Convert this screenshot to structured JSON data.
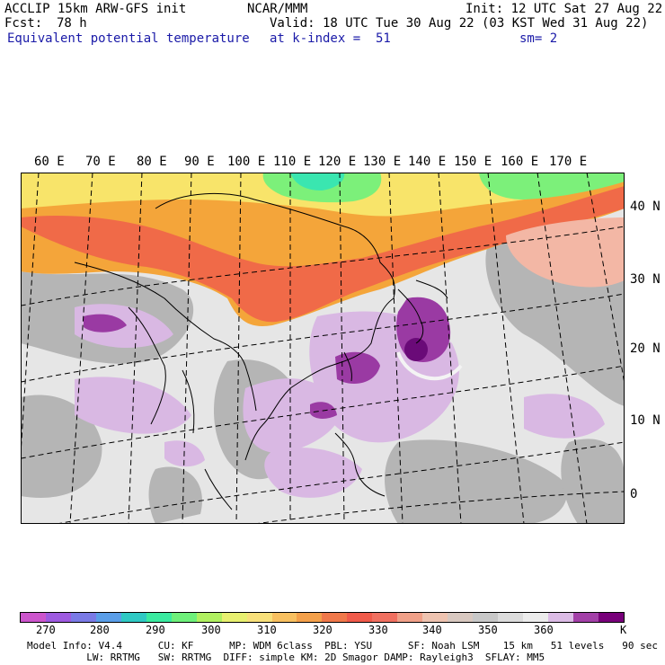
{
  "header": {
    "model": "ACCLIP 15km ARW-GFS init",
    "org": "NCAR/MMM",
    "init": "Init: 12 UTC Sat 27 Aug 22",
    "fcst_label": "Fcst:",
    "fcst_value": "78 h",
    "valid": "Valid: 18 UTC Tue 30 Aug 22 (03 KST Wed 31 Aug 22)",
    "field": "Equivalent potential temperature",
    "level": "at k-index =  51",
    "smooth": "sm= 2"
  },
  "map": {
    "lon_labels": [
      "60 E",
      "70 E",
      "80 E",
      "90 E",
      "100 E",
      "110 E",
      "120 E",
      "130 E",
      "140 E",
      "150 E",
      "160 E",
      "170 E"
    ],
    "lat_labels": [
      "40 N",
      "30 N",
      "20 N",
      "10 N",
      "0"
    ],
    "colors": {
      "land_bg": "#e6e6e6",
      "gray": "#b5b5b5",
      "light_purple": "#d9b8e3",
      "purple": "#9a3aa3",
      "dark_purple": "#6a0a78",
      "orange": "#f4a53a",
      "red_orange": "#f06a48",
      "yellow": "#f8e46a",
      "green": "#7cf07a",
      "teal": "#3ae6b0",
      "salmon": "#f3b7a5"
    }
  },
  "colorbar": {
    "colors": [
      "#cc55cc",
      "#9e5ae0",
      "#7a7ae6",
      "#5a9ee8",
      "#2fc9c4",
      "#3aeaa0",
      "#6ef07a",
      "#b0f060",
      "#e8f070",
      "#f8e07a",
      "#f8c060",
      "#f4a04a",
      "#f0784a",
      "#f05a4a",
      "#f07060",
      "#f0a088",
      "#eec3b0",
      "#d8c8c0",
      "#c8c8c8",
      "#dcdcdc",
      "#ececec",
      "#dcbce6",
      "#a340a8",
      "#78007a"
    ],
    "labels": [
      "270",
      "280",
      "290",
      "300",
      "310",
      "320",
      "330",
      "340",
      "350",
      "360"
    ],
    "unit": "K"
  },
  "footer": {
    "line1": "Model Info: V4.4      CU: KF      MP: WDM 6class  PBL: YSU      SF: Noah LSM    15 km   51 levels   90 sec",
    "line2": "          LW: RRTMG   SW: RRTMG  DIFF: simple KM: 2D Smagor DAMP: Rayleigh3  SFLAY: MM5"
  }
}
